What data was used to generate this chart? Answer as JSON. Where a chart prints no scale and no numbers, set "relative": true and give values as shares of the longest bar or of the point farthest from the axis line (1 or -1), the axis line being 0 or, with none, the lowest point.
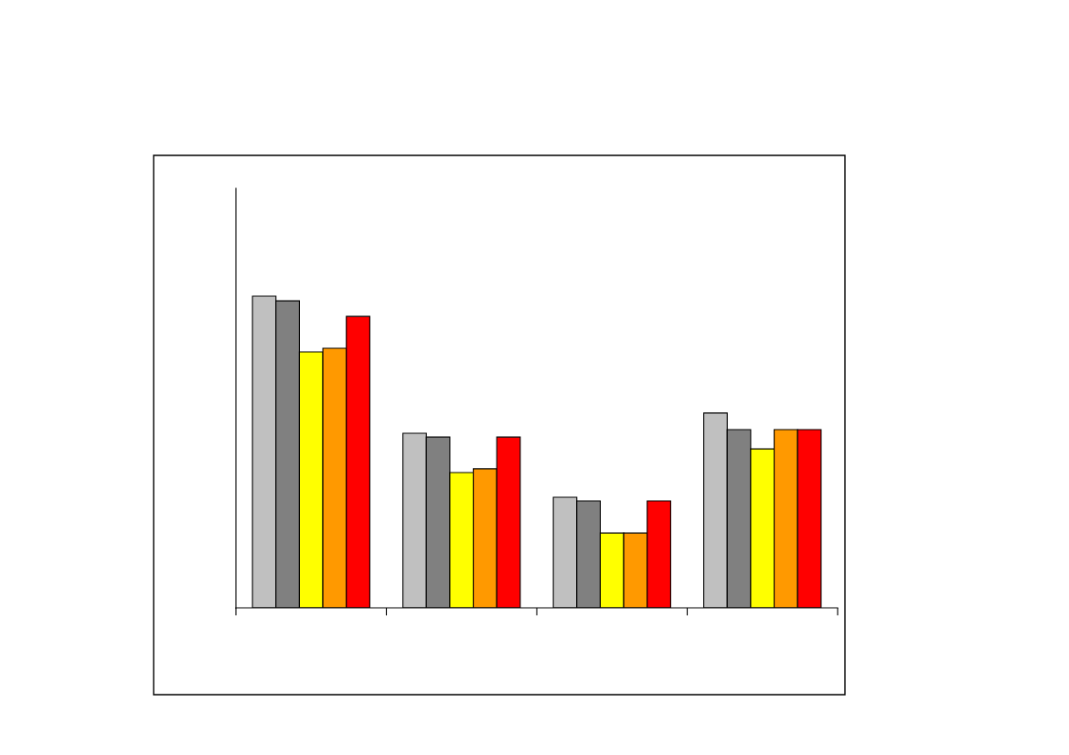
{
  "chart_data": {
    "type": "bar",
    "relative": true,
    "categories": [
      null,
      null,
      null,
      null
    ],
    "series": [
      {
        "color": "#c0c0c0",
        "values": [
          1,
          0.56,
          0.355,
          0.625
        ]
      },
      {
        "color": "#808080",
        "values": [
          0.985,
          0.548,
          0.343,
          0.572
        ]
      },
      {
        "color": "#ffff00",
        "values": [
          0.821,
          0.434,
          0.24,
          0.51
        ]
      },
      {
        "color": "#ff9900",
        "values": [
          0.833,
          0.446,
          0.24,
          0.572
        ]
      },
      {
        "color": "#ff0000",
        "values": [
          0.935,
          0.548,
          0.343,
          0.572
        ]
      }
    ]
  }
}
